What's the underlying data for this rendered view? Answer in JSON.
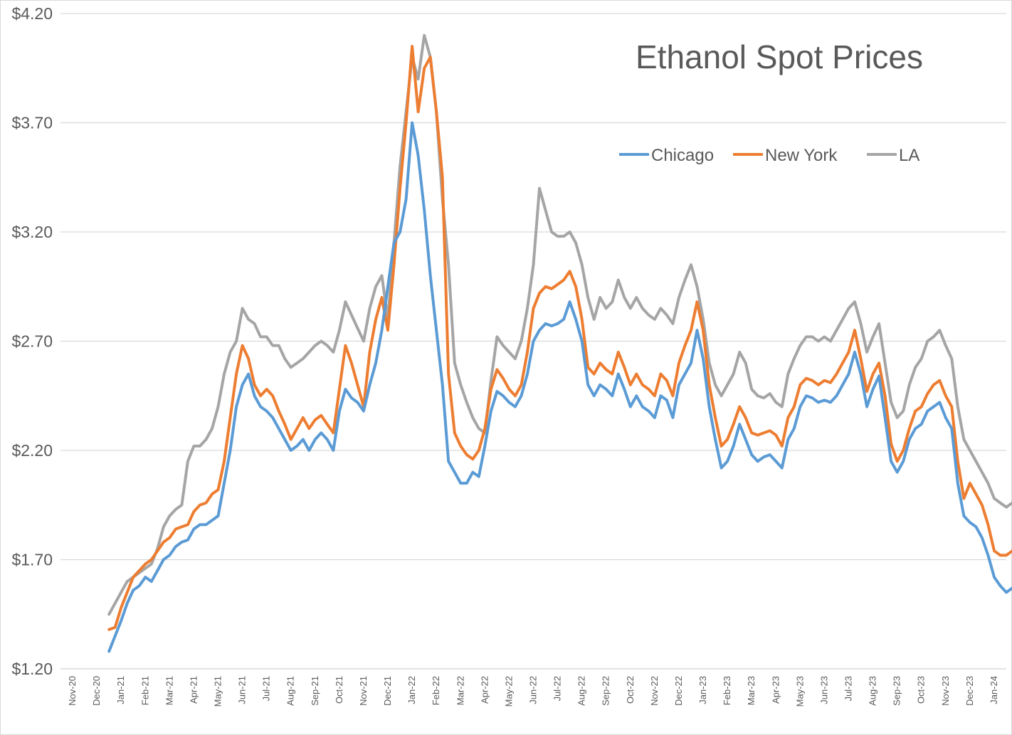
{
  "chart_data": {
    "type": "line",
    "title": "Ethanol Spot Prices",
    "xlabel": "",
    "ylabel": "",
    "ylim": [
      1.2,
      4.2
    ],
    "y_ticks": [
      "$1.20",
      "$1.70",
      "$2.20",
      "$2.70",
      "$3.20",
      "$3.70",
      "$4.20"
    ],
    "x_ticks": [
      "Nov-20",
      "Dec-20",
      "Jan-21",
      "Feb-21",
      "Mar-21",
      "Apr-21",
      "May-21",
      "Jun-21",
      "Jul-21",
      "Aug-21",
      "Sep-21",
      "Oct-21",
      "Nov-21",
      "Dec-21",
      "Jan-22",
      "Feb-22",
      "Mar-22",
      "Apr-22",
      "May-22",
      "Jun-22",
      "Jul-22",
      "Aug-22",
      "Sep-22",
      "Oct-22",
      "Nov-22",
      "Dec-22",
      "Jan-23",
      "Feb-23",
      "Mar-23",
      "Apr-23",
      "May-23",
      "Jun-23",
      "Jul-23",
      "Aug-23",
      "Sep-23",
      "Oct-23",
      "Nov-23",
      "Dec-23",
      "Jan-24"
    ],
    "grid": true,
    "legend": "top-right",
    "x_start_index": 1.5,
    "x_step_months": 0.25,
    "series": [
      {
        "name": "Chicago",
        "color": "#5B9BD5",
        "values": [
          1.28,
          1.35,
          1.42,
          1.5,
          1.56,
          1.58,
          1.62,
          1.6,
          1.65,
          1.7,
          1.72,
          1.76,
          1.78,
          1.79,
          1.84,
          1.86,
          1.86,
          1.88,
          1.9,
          2.05,
          2.2,
          2.4,
          2.5,
          2.55,
          2.45,
          2.4,
          2.38,
          2.35,
          2.3,
          2.25,
          2.2,
          2.22,
          2.25,
          2.2,
          2.25,
          2.28,
          2.25,
          2.2,
          2.38,
          2.48,
          2.44,
          2.42,
          2.38,
          2.5,
          2.6,
          2.75,
          2.95,
          3.15,
          3.2,
          3.35,
          3.7,
          3.55,
          3.3,
          3.0,
          2.75,
          2.5,
          2.15,
          2.1,
          2.05,
          2.05,
          2.1,
          2.08,
          2.22,
          2.38,
          2.47,
          2.45,
          2.42,
          2.4,
          2.45,
          2.55,
          2.7,
          2.75,
          2.78,
          2.77,
          2.78,
          2.8,
          2.88,
          2.8,
          2.7,
          2.5,
          2.45,
          2.5,
          2.48,
          2.45,
          2.55,
          2.48,
          2.4,
          2.45,
          2.4,
          2.38,
          2.35,
          2.45,
          2.43,
          2.35,
          2.5,
          2.55,
          2.6,
          2.75,
          2.62,
          2.4,
          2.25,
          2.12,
          2.15,
          2.22,
          2.32,
          2.25,
          2.18,
          2.15,
          2.17,
          2.18,
          2.15,
          2.12,
          2.25,
          2.3,
          2.4,
          2.45,
          2.44,
          2.42,
          2.43,
          2.42,
          2.45,
          2.5,
          2.55,
          2.65,
          2.55,
          2.4,
          2.48,
          2.54,
          2.35,
          2.15,
          2.1,
          2.15,
          2.25,
          2.3,
          2.32,
          2.38,
          2.4,
          2.42,
          2.35,
          2.3,
          2.05,
          1.9,
          1.87,
          1.85,
          1.8,
          1.72,
          1.62,
          1.58,
          1.55,
          1.57,
          1.58,
          1.58
        ]
      },
      {
        "name": "New York",
        "color": "#ED7D31",
        "values": [
          1.38,
          1.39,
          1.48,
          1.55,
          1.62,
          1.65,
          1.68,
          1.7,
          1.74,
          1.78,
          1.8,
          1.84,
          1.85,
          1.86,
          1.92,
          1.95,
          1.96,
          2.0,
          2.02,
          2.15,
          2.35,
          2.55,
          2.68,
          2.62,
          2.5,
          2.45,
          2.48,
          2.45,
          2.38,
          2.32,
          2.25,
          2.3,
          2.35,
          2.3,
          2.34,
          2.36,
          2.32,
          2.28,
          2.48,
          2.68,
          2.6,
          2.5,
          2.4,
          2.65,
          2.8,
          2.9,
          2.75,
          3.05,
          3.4,
          3.7,
          4.05,
          3.75,
          3.95,
          4.0,
          3.75,
          3.45,
          2.55,
          2.28,
          2.22,
          2.18,
          2.16,
          2.2,
          2.3,
          2.48,
          2.57,
          2.53,
          2.48,
          2.45,
          2.5,
          2.65,
          2.85,
          2.92,
          2.95,
          2.94,
          2.96,
          2.98,
          3.02,
          2.95,
          2.8,
          2.58,
          2.55,
          2.6,
          2.57,
          2.55,
          2.65,
          2.58,
          2.5,
          2.55,
          2.5,
          2.48,
          2.45,
          2.55,
          2.52,
          2.45,
          2.6,
          2.68,
          2.75,
          2.88,
          2.75,
          2.5,
          2.35,
          2.22,
          2.25,
          2.32,
          2.4,
          2.35,
          2.28,
          2.27,
          2.28,
          2.29,
          2.27,
          2.22,
          2.35,
          2.4,
          2.5,
          2.53,
          2.52,
          2.5,
          2.52,
          2.51,
          2.55,
          2.6,
          2.65,
          2.75,
          2.62,
          2.47,
          2.55,
          2.6,
          2.45,
          2.23,
          2.15,
          2.2,
          2.3,
          2.38,
          2.4,
          2.46,
          2.5,
          2.52,
          2.45,
          2.4,
          2.15,
          1.98,
          2.05,
          2.0,
          1.95,
          1.86,
          1.74,
          1.72,
          1.72,
          1.74,
          1.73,
          1.74
        ]
      },
      {
        "name": "LA",
        "color": "#A5A5A5",
        "values": [
          1.45,
          1.5,
          1.55,
          1.6,
          1.62,
          1.64,
          1.66,
          1.68,
          1.75,
          1.85,
          1.9,
          1.93,
          1.95,
          2.15,
          2.22,
          2.22,
          2.25,
          2.3,
          2.4,
          2.55,
          2.65,
          2.7,
          2.85,
          2.8,
          2.78,
          2.72,
          2.72,
          2.68,
          2.68,
          2.62,
          2.58,
          2.6,
          2.62,
          2.65,
          2.68,
          2.7,
          2.68,
          2.65,
          2.75,
          2.88,
          2.82,
          2.76,
          2.7,
          2.85,
          2.95,
          3.0,
          2.8,
          3.15,
          3.5,
          3.75,
          4.0,
          3.9,
          4.1,
          4.0,
          3.75,
          3.35,
          3.05,
          2.6,
          2.5,
          2.42,
          2.35,
          2.3,
          2.28,
          2.52,
          2.72,
          2.68,
          2.65,
          2.62,
          2.7,
          2.85,
          3.05,
          3.4,
          3.3,
          3.2,
          3.18,
          3.18,
          3.2,
          3.15,
          3.05,
          2.9,
          2.8,
          2.9,
          2.85,
          2.88,
          2.98,
          2.9,
          2.85,
          2.9,
          2.85,
          2.82,
          2.8,
          2.85,
          2.82,
          2.78,
          2.9,
          2.98,
          3.05,
          2.95,
          2.8,
          2.6,
          2.5,
          2.45,
          2.5,
          2.55,
          2.65,
          2.6,
          2.48,
          2.45,
          2.44,
          2.46,
          2.42,
          2.4,
          2.55,
          2.62,
          2.68,
          2.72,
          2.72,
          2.7,
          2.72,
          2.7,
          2.75,
          2.8,
          2.85,
          2.88,
          2.78,
          2.65,
          2.72,
          2.78,
          2.6,
          2.42,
          2.35,
          2.38,
          2.5,
          2.58,
          2.62,
          2.7,
          2.72,
          2.75,
          2.68,
          2.62,
          2.4,
          2.25,
          2.2,
          2.15,
          2.1,
          2.05,
          1.98,
          1.96,
          1.94,
          1.96,
          1.95,
          1.96
        ]
      }
    ]
  }
}
